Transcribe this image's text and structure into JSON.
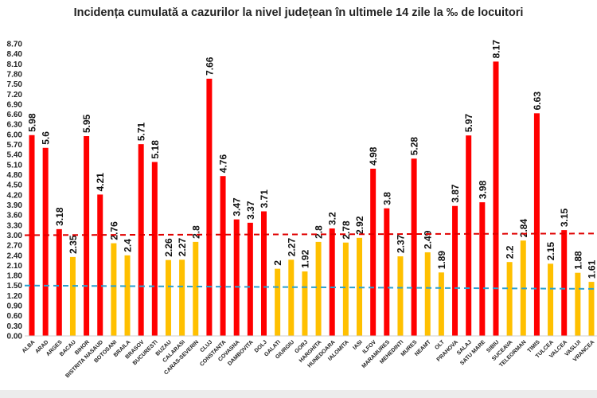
{
  "chart_data": {
    "type": "bar",
    "title": "Incidența cumulată a cazurilor la nivel județean în ultimele 14 zile la ‰ de locuitori",
    "xlabel": "",
    "ylabel": "",
    "ylim": [
      0,
      8.7
    ],
    "ytick_step": 0.3,
    "grid": false,
    "categories": [
      "ALBA",
      "ARAD",
      "ARGES",
      "BACAU",
      "BIHOR",
      "BISTRITA NASAUD",
      "BOTOSANI",
      "BRAILA",
      "BRASOV",
      "BUCURESTI",
      "BUZAU",
      "CALARASI",
      "CARAS-SEVERIN",
      "CLUJ",
      "CONSTANTA",
      "COVASNA",
      "DAMBOVITA",
      "DOLJ",
      "GALATI",
      "GIURGIU",
      "GORJ",
      "HARGHITA",
      "HUNEDOARA",
      "IALOMITA",
      "IASI",
      "ILFOV",
      "MARAMURES",
      "MEHEDINTI",
      "MURES",
      "NEAMT",
      "OLT",
      "PRAHOVA",
      "SALAJ",
      "SATU MARE",
      "SIBIU",
      "SUCEAVA",
      "TELEORMAN",
      "TIMIS",
      "TULCEA",
      "VALCEA",
      "VASLUI",
      "VRANCEA"
    ],
    "values": [
      5.98,
      5.6,
      3.18,
      2.35,
      5.95,
      4.21,
      2.76,
      2.4,
      5.71,
      5.18,
      2.26,
      2.27,
      2.8,
      7.66,
      4.76,
      3.47,
      3.37,
      3.71,
      2,
      2.27,
      1.92,
      2.8,
      3.2,
      2.78,
      2.92,
      4.98,
      3.8,
      2.37,
      5.28,
      2.49,
      1.89,
      3.87,
      5.97,
      3.98,
      8.17,
      2.2,
      2.84,
      6.63,
      2.15,
      3.15,
      1.88,
      1.61
    ],
    "value_labels": [
      "5.98",
      "5.6",
      "3.18",
      "2.35",
      "5.95",
      "4.21",
      "2.76",
      "2.4",
      "5.71",
      "5.18",
      "2.26",
      "2.27",
      "2.8",
      "7.66",
      "4.76",
      "3.47",
      "3.37",
      "3.71",
      "2",
      "2.27",
      "1.92",
      "2.8",
      "3.2",
      "2.78",
      "2.92",
      "4.98",
      "3.8",
      "2.37",
      "5.28",
      "2.49",
      "1.89",
      "3.87",
      "5.97",
      "3.98",
      "8.17",
      "2.2",
      "2.84",
      "6.63",
      "2.15",
      "3.15",
      "1.88",
      "1.61"
    ],
    "threshold_lines": [
      {
        "name": "red-threshold",
        "start": 3.0,
        "end": 3.05,
        "color": "#E00000"
      },
      {
        "name": "blue-threshold",
        "start": 1.5,
        "end": 1.4,
        "color": "#2AA0D0"
      }
    ],
    "colors": {
      "above": "#FF0000",
      "below": "#FFC000"
    },
    "color_rule_threshold": 3.0
  }
}
